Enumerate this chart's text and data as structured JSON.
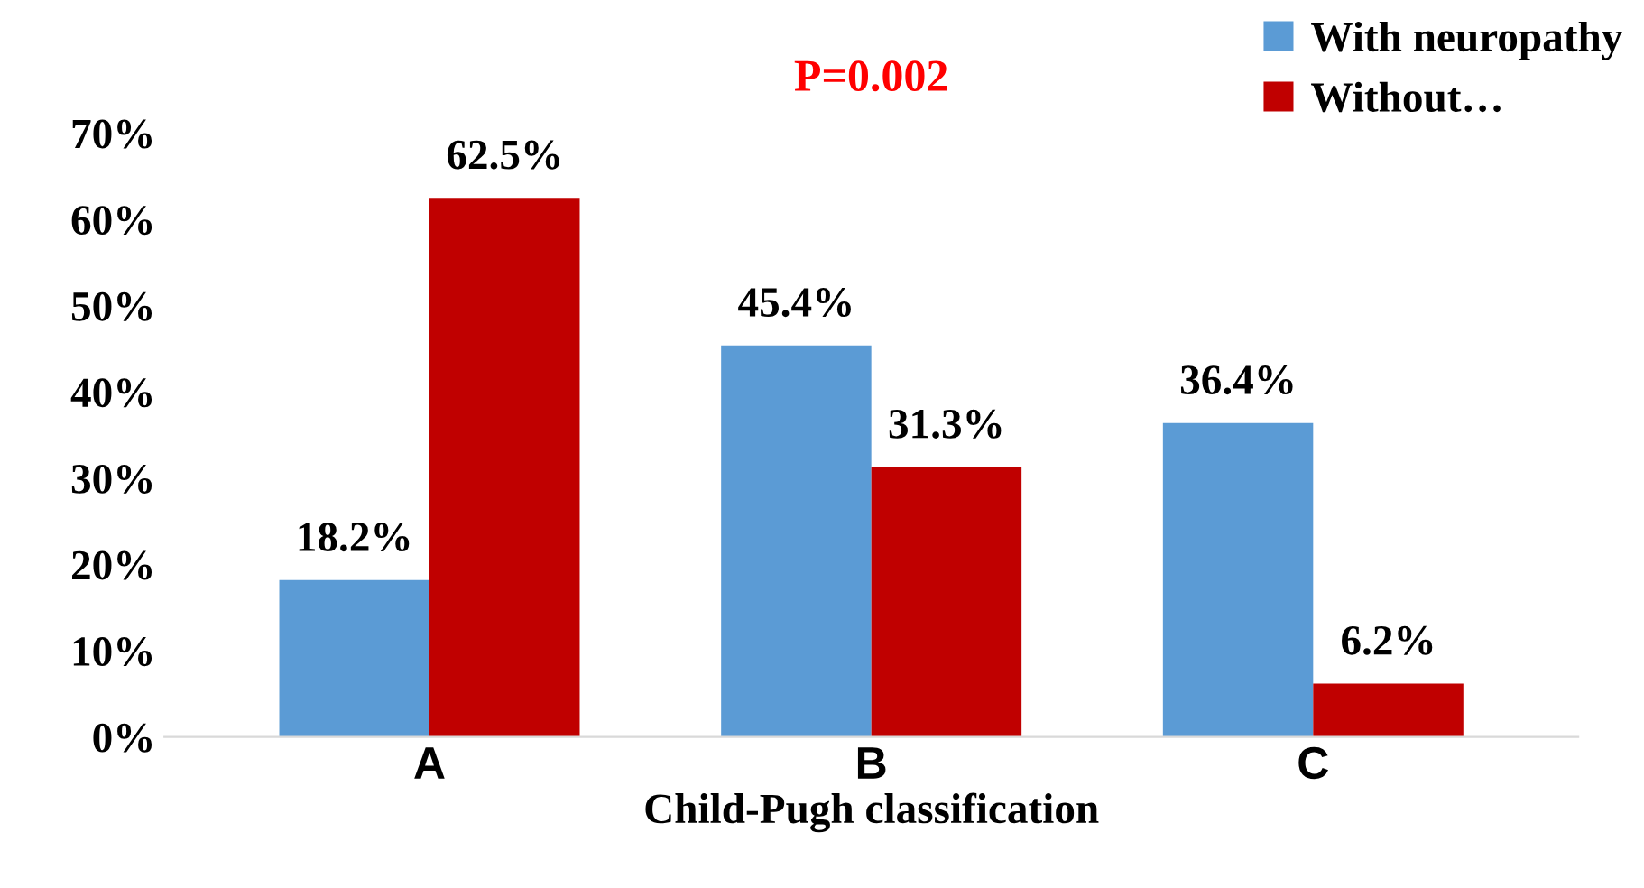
{
  "chart_data": {
    "type": "bar",
    "xlabel": "Child-Pugh classification",
    "categories": [
      "A",
      "B",
      "C"
    ],
    "series": [
      {
        "name": "With neuropathy",
        "color": "#5b9bd5",
        "values": [
          18.2,
          45.4,
          36.4
        ],
        "value_labels": [
          "18.2%",
          "45.4%",
          "36.4%"
        ]
      },
      {
        "name": "Without…",
        "color": "#c00000",
        "values": [
          62.5,
          31.3,
          6.2
        ],
        "value_labels": [
          "62.5%",
          "31.3%",
          "6.2%"
        ]
      }
    ],
    "ylim": [
      0,
      70
    ],
    "yticks": [
      {
        "value": 0,
        "label": "0%"
      },
      {
        "value": 10,
        "label": "10%"
      },
      {
        "value": 20,
        "label": "20%"
      },
      {
        "value": 30,
        "label": "30%"
      },
      {
        "value": 40,
        "label": "40%"
      },
      {
        "value": 50,
        "label": "50%"
      },
      {
        "value": 60,
        "label": "60%"
      },
      {
        "value": 70,
        "label": "70%"
      }
    ],
    "annotations": [
      "P=0.002"
    ],
    "legend": "top right",
    "grid": false
  }
}
